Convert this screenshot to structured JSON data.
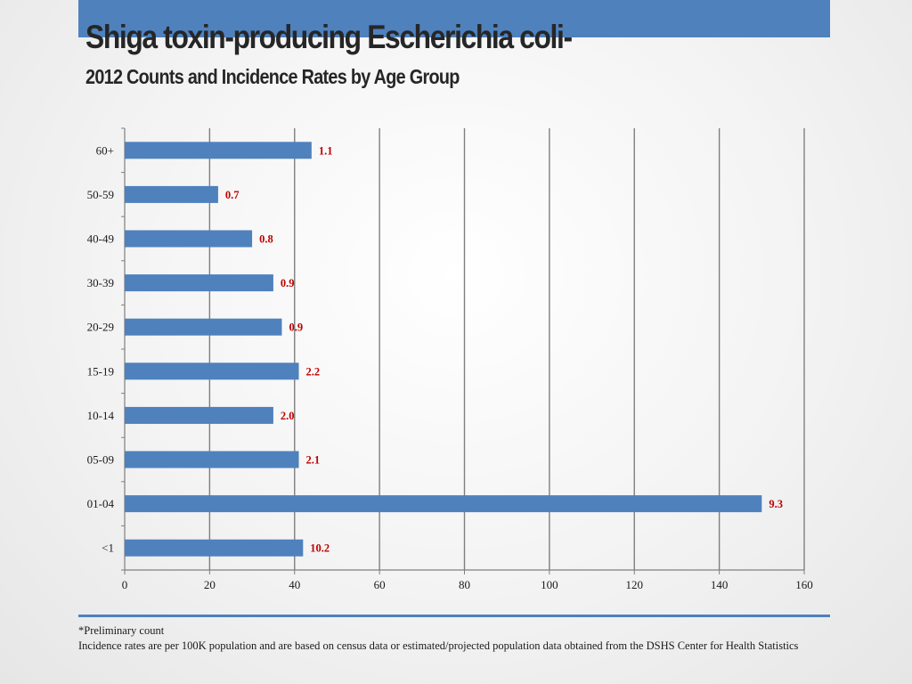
{
  "header": {
    "title": "Shiga toxin-producing Escherichia coli-",
    "subtitle": "2012 Counts and Incidence Rates by Age Group"
  },
  "chart_data": {
    "type": "bar",
    "orientation": "horizontal",
    "categories": [
      "<1",
      "01-04",
      "05-09",
      "10-14",
      "15-19",
      "20-29",
      "30-39",
      "40-49",
      "50-59",
      "60+"
    ],
    "series": [
      {
        "values": [
          42,
          150,
          41,
          35,
          41,
          37,
          35,
          30,
          22,
          44
        ],
        "data_labels": [
          "10.2",
          "9.3",
          "2.1",
          "2.0",
          "2.2",
          "0.9",
          "0.9",
          "0.8",
          "0.7",
          "1.1"
        ]
      }
    ],
    "xlim": [
      0,
      160
    ],
    "xticks": [
      "0",
      "20",
      "40",
      "60",
      "80",
      "100",
      "120",
      "140",
      "160"
    ],
    "xlabel": "",
    "ylabel": "",
    "grid": "vertical",
    "legend": "none",
    "bar_color": "#4f81bd",
    "label_color": "#c00000",
    "grid_color": "#7f7f7f"
  },
  "footer": {
    "note": "*Preliminary count",
    "source": "Incidence rates are per 100K population and are based on census data or estimated/projected population data obtained from the DSHS Center for Health Statistics"
  }
}
